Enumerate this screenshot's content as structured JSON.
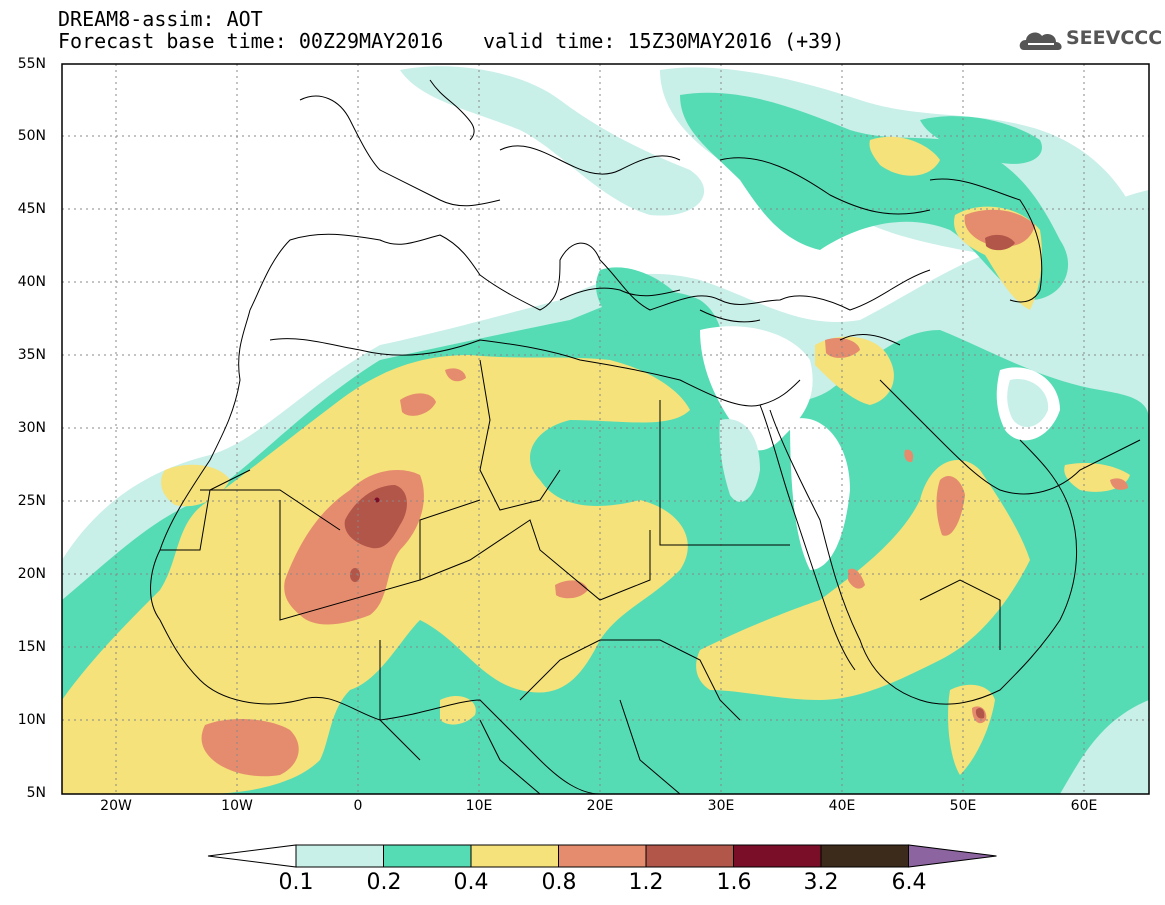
{
  "header": {
    "title_line1": "DREAM8-assim: AOT",
    "title_line2": "Forecast base time: 00Z29MAY2016",
    "valid_time": "valid time: 15Z30MAY2016 (+39)",
    "logo_text": "SEEVCCC"
  },
  "axes": {
    "lat_ticks": [
      "55N",
      "50N",
      "45N",
      "40N",
      "35N",
      "30N",
      "25N",
      "20N",
      "15N",
      "10N",
      "5N"
    ],
    "lon_ticks": [
      "20W",
      "10W",
      "0",
      "10E",
      "20E",
      "30E",
      "40E",
      "50E",
      "60E"
    ]
  },
  "colorbar": {
    "labels": [
      "0.1",
      "0.2",
      "0.4",
      "0.8",
      "1.2",
      "1.6",
      "3.2",
      "6.4"
    ],
    "colors": [
      "#c8efe8",
      "#55dcb4",
      "#f5e27a",
      "#e68c6e",
      "#b3564a",
      "#7a0e28",
      "#3c2a1a",
      "#8c64a0"
    ],
    "under_color": "#ffffff",
    "over_color": "#8c64a0"
  },
  "map_colors": {
    "land_background": "#ffffff",
    "border_color": "#000000",
    "grid_color": "#888888"
  }
}
